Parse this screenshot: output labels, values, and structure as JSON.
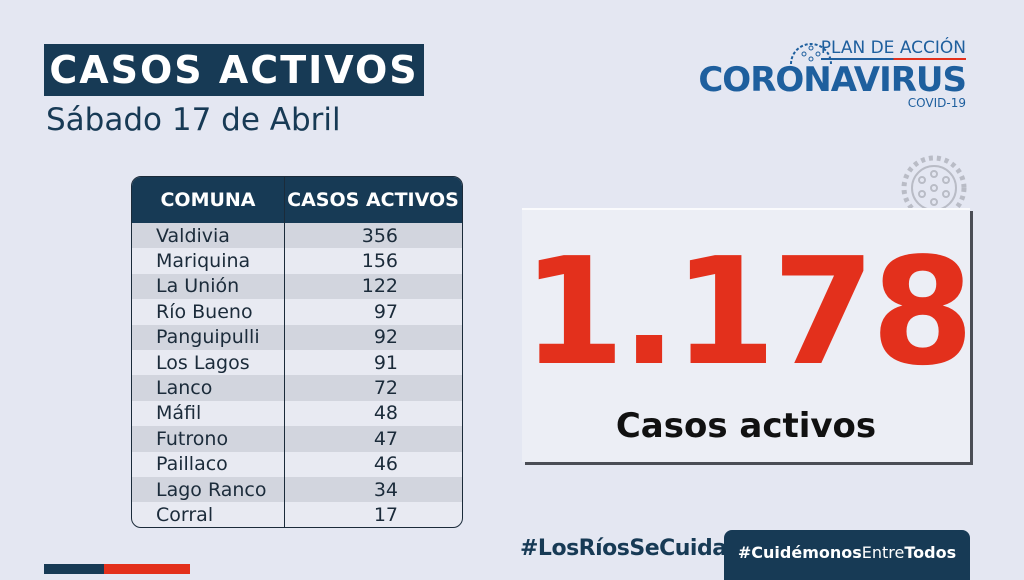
{
  "header": {
    "title": "CASOS ACTIVOS",
    "date": "Sábado 17 de Abril"
  },
  "logo": {
    "plan": "PLAN DE ACCIÓN",
    "main": "CORONAVIRUS",
    "sub": "COVID-19"
  },
  "table": {
    "headers": [
      "COMUNA",
      "CASOS ACTIVOS"
    ],
    "rows": [
      {
        "comuna": "Valdivia",
        "casos": "356"
      },
      {
        "comuna": "Mariquina",
        "casos": "156"
      },
      {
        "comuna": "La Unión",
        "casos": "122"
      },
      {
        "comuna": "Río Bueno",
        "casos": "97"
      },
      {
        "comuna": "Panguipulli",
        "casos": "92"
      },
      {
        "comuna": "Los Lagos",
        "casos": "91"
      },
      {
        "comuna": "Lanco",
        "casos": "72"
      },
      {
        "comuna": "Máfil",
        "casos": "48"
      },
      {
        "comuna": "Futrono",
        "casos": "47"
      },
      {
        "comuna": "Paillaco",
        "casos": "46"
      },
      {
        "comuna": "Lago Ranco",
        "casos": "34"
      },
      {
        "comuna": "Corral",
        "casos": "17"
      }
    ]
  },
  "total": {
    "value": "1.178",
    "label": "Casos activos"
  },
  "footer": {
    "hashtag1": "#LosRíosSeCuida",
    "hashtag2_a": "#Cuidémonos",
    "hashtag2_b": "Entre",
    "hashtag2_c": "Todos"
  },
  "colors": {
    "navy": "#173a55",
    "red": "#e3301c",
    "blue": "#1e5f9e"
  }
}
